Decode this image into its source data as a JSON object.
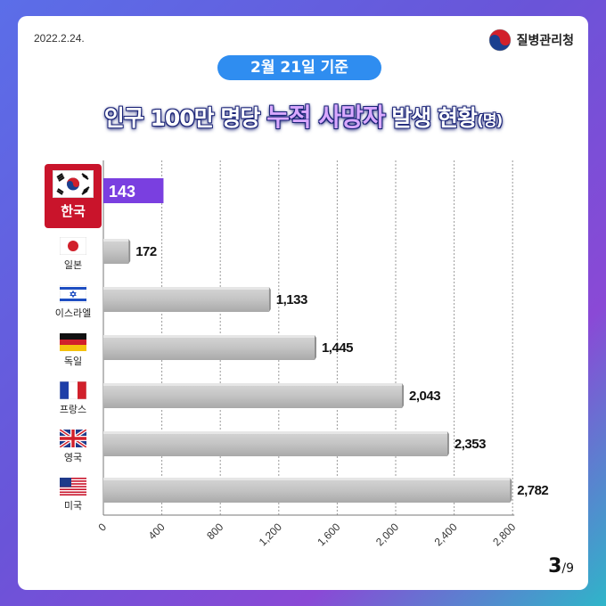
{
  "header": {
    "date": "2022.2.24.",
    "agency": "질병관리청"
  },
  "subtitle_pill": "2월 21일 기준",
  "title": {
    "pre": "인구 100만 명당",
    "highlight": "누적 사망자",
    "post": "발생 현황",
    "unit": "(명)"
  },
  "page": {
    "current": "3",
    "total": "/9"
  },
  "colors": {
    "korea_bar": "#7a3fe0",
    "korea_box": "#c9142b",
    "other_bar": "#b9b9b9",
    "pill": "#2f8df0"
  },
  "chart_data": {
    "type": "bar",
    "orientation": "horizontal",
    "categories": [
      "한국",
      "일본",
      "이스라엘",
      "독일",
      "프랑스",
      "영국",
      "미국"
    ],
    "values": [
      143,
      172,
      1133,
      1445,
      2043,
      2353,
      2782
    ],
    "value_labels": [
      "143",
      "172",
      "1,133",
      "1,445",
      "2,043",
      "2,353",
      "2,782"
    ],
    "xlim": [
      0,
      2800
    ],
    "xticks": [
      0,
      400,
      800,
      1200,
      1600,
      2000,
      2400,
      2800
    ],
    "xtick_labels": [
      "0",
      "400",
      "800",
      "1,200",
      "1,600",
      "2,000",
      "2,400",
      "2,800"
    ],
    "grid": true,
    "highlight_category": "한국"
  }
}
